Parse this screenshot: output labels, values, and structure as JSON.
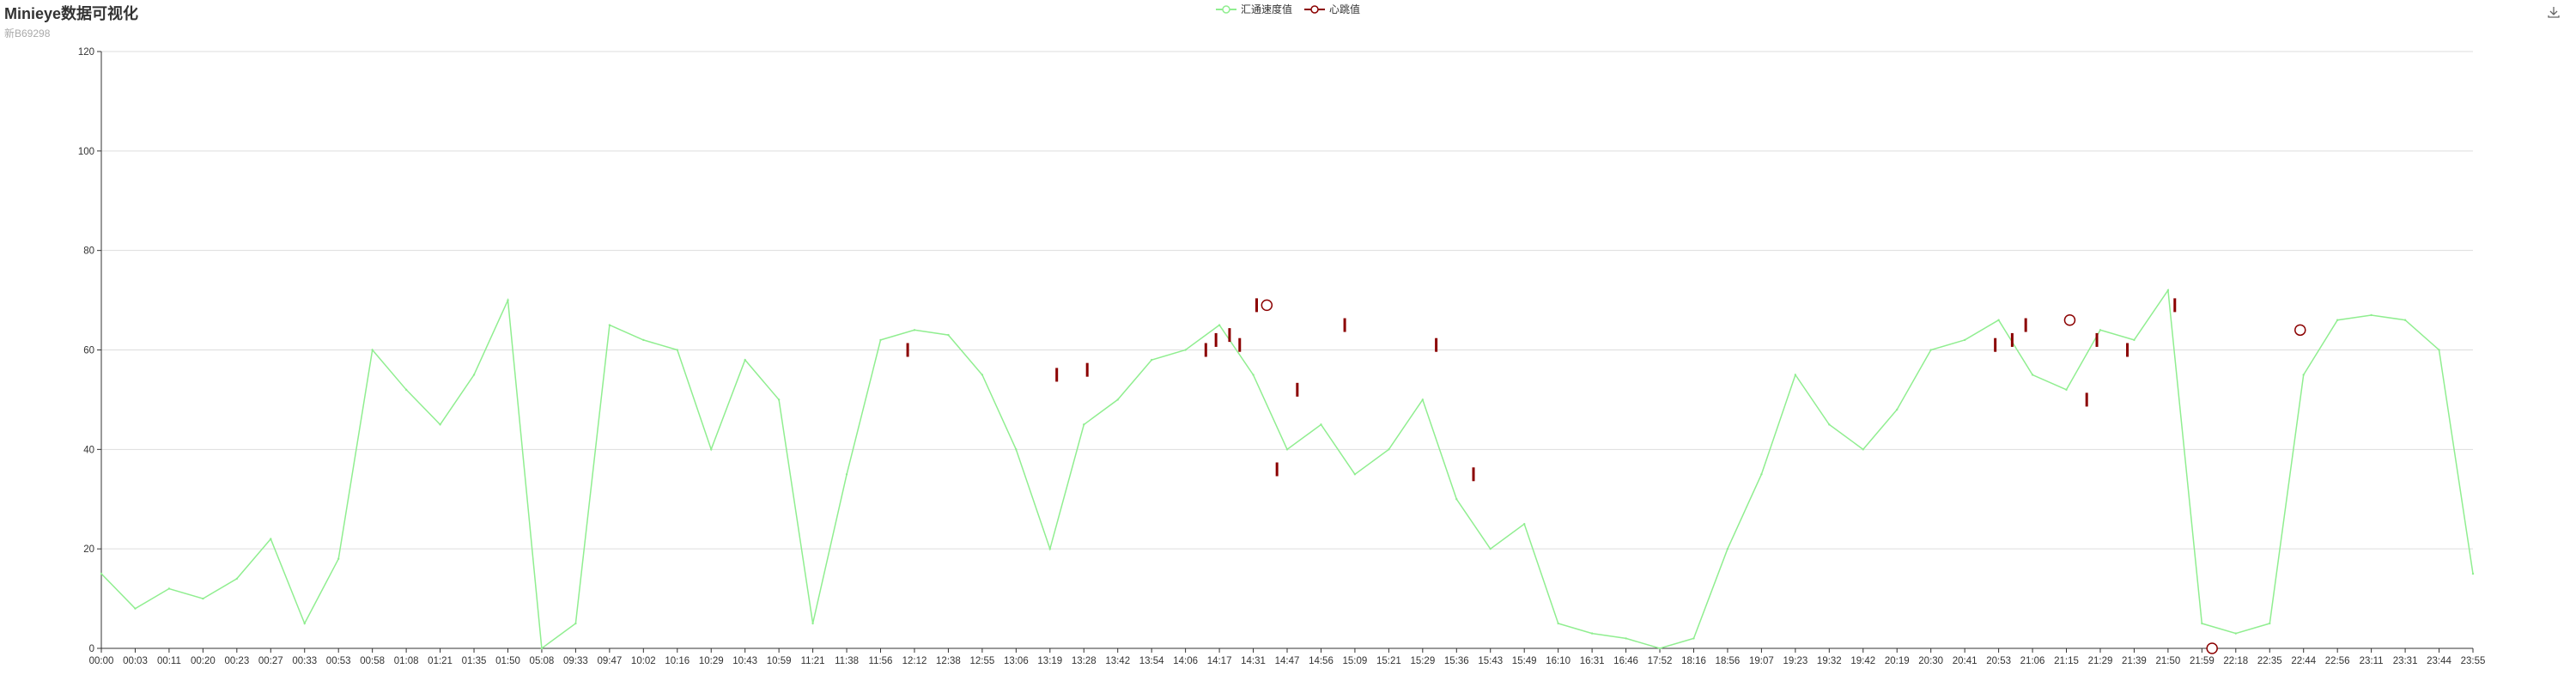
{
  "header": {
    "title": "Minieye数据可视化",
    "subtitle": "新B69298"
  },
  "toolbox": {
    "save_icon": "download-icon"
  },
  "colors": {
    "speed": "#90ee90",
    "heartbeat": "#8b0000",
    "grid": "#dddddd",
    "axis": "#333333"
  },
  "chart_data": {
    "type": "line",
    "title": "Minieye数据可视化",
    "subtitle": "新B69298",
    "legend": [
      "汇通速度值",
      "心跳值"
    ],
    "legend_position": "top-center",
    "grid": true,
    "ylim": [
      0,
      120
    ],
    "yticks": [
      0,
      20,
      40,
      60,
      80,
      100,
      120
    ],
    "x_ticks": [
      "00:00",
      "00:03",
      "00:11",
      "00:20",
      "00:23",
      "00:27",
      "00:33",
      "00:53",
      "00:58",
      "01:08",
      "01:21",
      "01:35",
      "01:50",
      "05:08",
      "09:33",
      "09:47",
      "10:02",
      "10:16",
      "10:29",
      "10:43",
      "10:59",
      "11:21",
      "11:38",
      "11:56",
      "12:12",
      "12:38",
      "12:55",
      "13:06",
      "13:19",
      "13:28",
      "13:42",
      "13:54",
      "14:06",
      "14:17",
      "14:31",
      "14:47",
      "14:56",
      "15:09",
      "15:21",
      "15:29",
      "15:36",
      "15:43",
      "15:49",
      "16:10",
      "16:31",
      "16:46",
      "17:52",
      "18:16",
      "18:56",
      "19:07",
      "19:23",
      "19:32",
      "19:42",
      "20:19",
      "20:30",
      "20:41",
      "20:53",
      "21:06",
      "21:15",
      "21:29",
      "21:39",
      "21:50",
      "21:59",
      "22:18",
      "22:35",
      "22:44",
      "22:56",
      "23:11",
      "23:31",
      "23:44",
      "23:55"
    ],
    "series": [
      {
        "name": "汇通速度值",
        "type": "line",
        "color": "#90ee90",
        "x": [
          0,
          1,
          2,
          3,
          4,
          5,
          6,
          7,
          8,
          9,
          10,
          11,
          12,
          13,
          14,
          15,
          16,
          17,
          18,
          19,
          20,
          21,
          22,
          23,
          24,
          25,
          26,
          27,
          28,
          29,
          30,
          31,
          32,
          33,
          34,
          35,
          36,
          37,
          38,
          39,
          40,
          41,
          42,
          43,
          44,
          45,
          46,
          47,
          48,
          49,
          50,
          51,
          52,
          53,
          54,
          55,
          56,
          57,
          58,
          59,
          60,
          61,
          62,
          63,
          64,
          65,
          66,
          67,
          68,
          69,
          70
        ],
        "values": [
          15,
          8,
          12,
          10,
          14,
          22,
          5,
          18,
          60,
          52,
          45,
          55,
          70,
          0,
          5,
          65,
          62,
          60,
          40,
          58,
          50,
          5,
          35,
          62,
          64,
          63,
          55,
          40,
          20,
          45,
          50,
          58,
          60,
          65,
          55,
          40,
          45,
          35,
          40,
          50,
          30,
          20,
          25,
          5,
          3,
          2,
          0,
          2,
          20,
          35,
          55,
          45,
          40,
          48,
          60,
          62,
          66,
          55,
          52,
          64,
          62,
          72,
          5,
          3,
          5,
          55,
          66,
          67,
          66,
          60,
          15
        ]
      },
      {
        "name": "心跳值",
        "type": "scatter",
        "color": "#8b0000",
        "x": [
          23.8,
          28.2,
          29.1,
          32.6,
          32.9,
          33.3,
          33.6,
          34.1,
          34.7,
          35.3,
          36.7,
          39.4,
          40.5,
          55.9,
          56.4,
          56.8,
          58.6,
          58.9,
          59.8,
          61.2
        ],
        "values": [
          60,
          55,
          56,
          60,
          62,
          63,
          61,
          69,
          36,
          52,
          65,
          61,
          35,
          61,
          62,
          65,
          50,
          62,
          60,
          69
        ]
      }
    ],
    "markers": [
      {
        "x": 34.4,
        "y": 69
      },
      {
        "x": 58.1,
        "y": 66
      },
      {
        "x": 62.3,
        "y": 0
      },
      {
        "x": 64.9,
        "y": 64
      }
    ]
  }
}
